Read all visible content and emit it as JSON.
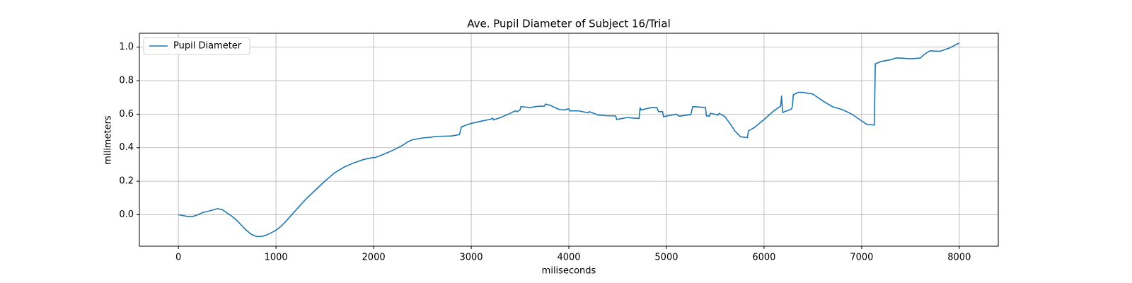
{
  "chart_data": {
    "type": "line",
    "title": "Ave. Pupil Diameter of Subject 16/Trial",
    "x_label": "miliseconds",
    "y_label": "milimeters",
    "xlim": [
      -400,
      8400
    ],
    "ylim": [
      -0.188,
      1.083
    ],
    "xticks": [
      0,
      1000,
      2000,
      3000,
      4000,
      5000,
      6000,
      7000,
      8000
    ],
    "yticks": [
      {
        "value": 0,
        "label": "0.0"
      },
      0.2,
      0.4,
      0.6,
      0.8,
      {
        "value": 1,
        "label": "1.0"
      }
    ],
    "grid": true,
    "legend": "upper-left",
    "x": [
      0,
      50,
      100,
      150,
      200,
      250,
      300,
      350,
      400,
      450,
      500,
      550,
      600,
      650,
      700,
      750,
      800,
      850,
      900,
      950,
      1000,
      1050,
      1100,
      1200,
      1300,
      1400,
      1500,
      1600,
      1700,
      1800,
      1900,
      2000,
      2010,
      2100,
      2200,
      2300,
      2350,
      2400,
      2500,
      2600,
      2620,
      2800,
      2880,
      2900,
      3000,
      3100,
      3200,
      3220,
      3230,
      3300,
      3400,
      3450,
      3470,
      3500,
      3510,
      3600,
      3700,
      3750,
      3760,
      3800,
      3900,
      3950,
      4000,
      4010,
      4100,
      4200,
      4210,
      4300,
      4400,
      4480,
      4490,
      4600,
      4700,
      4720,
      4730,
      4740,
      4850,
      4900,
      4920,
      4960,
      4970,
      5100,
      5130,
      5250,
      5270,
      5400,
      5410,
      5440,
      5450,
      5530,
      5540,
      5600,
      5680,
      5700,
      5760,
      5830,
      5840,
      5900,
      6000,
      6100,
      6170,
      6180,
      6190,
      6280,
      6290,
      6300,
      6350,
      6400,
      6500,
      6600,
      6700,
      6800,
      6900,
      7000,
      7050,
      7130,
      7140,
      7200,
      7300,
      7350,
      7400,
      7500,
      7600,
      7650,
      7700,
      7800,
      7900,
      8000
    ],
    "series": [
      {
        "name": "Pupil Diameter",
        "color": "#1f77b4",
        "values": [
          0.0,
          -0.005,
          -0.012,
          -0.01,
          0.0,
          0.013,
          0.02,
          0.028,
          0.036,
          0.03,
          0.01,
          -0.01,
          -0.035,
          -0.065,
          -0.095,
          -0.118,
          -0.13,
          -0.13,
          -0.122,
          -0.108,
          -0.093,
          -0.07,
          -0.04,
          0.025,
          0.09,
          0.145,
          0.2,
          0.25,
          0.285,
          0.31,
          0.33,
          0.342,
          0.34,
          0.36,
          0.385,
          0.415,
          0.435,
          0.448,
          0.458,
          0.463,
          0.467,
          0.47,
          0.478,
          0.525,
          0.545,
          0.558,
          0.57,
          0.576,
          0.566,
          0.58,
          0.605,
          0.62,
          0.615,
          0.625,
          0.645,
          0.64,
          0.648,
          0.648,
          0.66,
          0.655,
          0.628,
          0.625,
          0.632,
          0.62,
          0.62,
          0.608,
          0.615,
          0.595,
          0.59,
          0.59,
          0.568,
          0.58,
          0.575,
          0.575,
          0.64,
          0.625,
          0.64,
          0.64,
          0.615,
          0.615,
          0.585,
          0.6,
          0.588,
          0.598,
          0.645,
          0.64,
          0.59,
          0.588,
          0.605,
          0.595,
          0.605,
          0.585,
          0.52,
          0.5,
          0.465,
          0.46,
          0.5,
          0.52,
          0.568,
          0.62,
          0.648,
          0.71,
          0.61,
          0.63,
          0.645,
          0.715,
          0.73,
          0.73,
          0.72,
          0.68,
          0.645,
          0.628,
          0.6,
          0.56,
          0.54,
          0.535,
          0.9,
          0.915,
          0.925,
          0.935,
          0.935,
          0.93,
          0.935,
          0.96,
          0.978,
          0.975,
          0.995,
          1.025
        ]
      }
    ]
  }
}
